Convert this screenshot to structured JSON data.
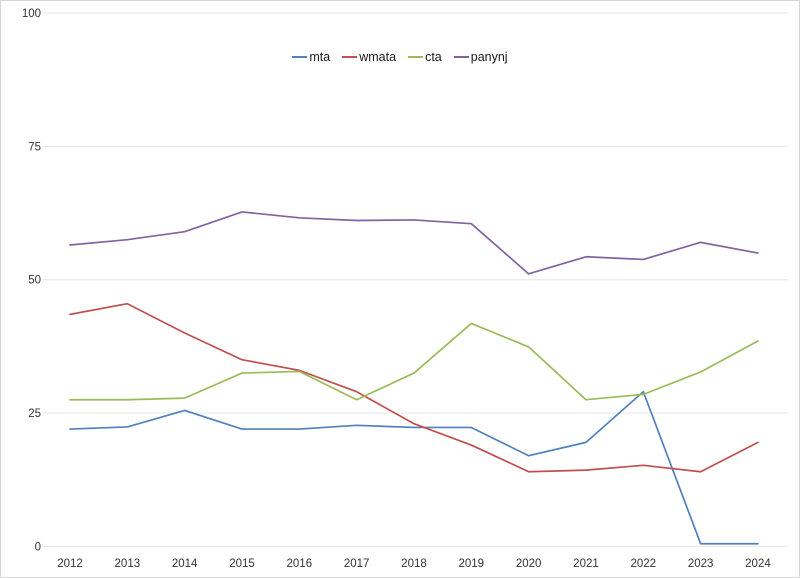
{
  "chart": {
    "background": "#ffffff",
    "border_color": "#d6d6d6",
    "gridline_color": "#e7e7e7",
    "tick_label_color": "#333333",
    "accent_colors": {
      "mta": "#4f81bd",
      "wmata": "#c0504d",
      "cta": "#9bbb59",
      "panynj": "#8064a2"
    }
  },
  "chart_data": {
    "type": "line",
    "title": "",
    "xlabel": "",
    "ylabel": "",
    "grid": true,
    "legend_position": "top-center",
    "ylim": [
      0,
      100
    ],
    "yticks": [
      0,
      25,
      50,
      75,
      100
    ],
    "categories": [
      "2012",
      "2013",
      "2014",
      "2015",
      "2016",
      "2017",
      "2018",
      "2019",
      "2020",
      "2021",
      "2022",
      "2023",
      "2024"
    ],
    "series": [
      {
        "name": "mta",
        "color": "#4f81bd",
        "values": [
          22,
          22.4,
          25.5,
          22,
          22,
          22.7,
          22.3,
          22.3,
          17,
          19.5,
          29,
          0.5,
          0.5
        ]
      },
      {
        "name": "wmata",
        "color": "#c0504d",
        "values": [
          43.5,
          45.5,
          40,
          35,
          33,
          29,
          23,
          19,
          14,
          14.3,
          15.2,
          14,
          19.5
        ]
      },
      {
        "name": "cta",
        "color": "#9bbb59",
        "values": [
          27.5,
          27.5,
          27.8,
          32.5,
          32.8,
          27.5,
          32.5,
          41.8,
          37.4,
          27.5,
          28.5,
          32.7,
          38.5
        ]
      },
      {
        "name": "panynj",
        "color": "#8064a2",
        "values": [
          56.5,
          57.5,
          59,
          62.7,
          61.6,
          61.1,
          61.2,
          60.5,
          51.1,
          54.3,
          53.8,
          57,
          55
        ]
      }
    ]
  }
}
